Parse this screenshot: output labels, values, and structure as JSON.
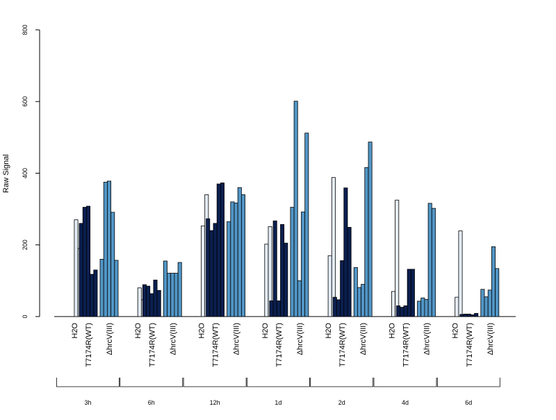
{
  "chart_data": {
    "type": "bar",
    "ylabel": "Raw Signal",
    "ylim": [
      0,
      800
    ],
    "y_ticks": [
      "0",
      "200",
      "400",
      "600",
      "800"
    ],
    "grid": false,
    "group_labels": [
      "3h",
      "6h",
      "12h",
      "1d",
      "2d",
      "4d",
      "6d"
    ],
    "condition_labels": [
      "H2O",
      "T7174R(WT)",
      "ΔhrcV(III)"
    ],
    "colors": {
      "H2O": "#e4ecf6",
      "T7174R(WT)": "#0b1f4f",
      "ΔhrcV(III)": "#5296c6"
    },
    "groups": [
      {
        "name": "3h",
        "H2O": [
          0,
          0,
          270,
          190
        ],
        "T7174R(WT)": [
          260,
          305,
          308,
          118,
          130
        ],
        "ΔhrcV(III)": [
          160,
          375,
          378,
          291,
          157
        ]
      },
      {
        "name": "6h",
        "H2O": [
          0,
          0,
          80,
          47
        ],
        "T7174R(WT)": [
          89,
          85,
          64,
          102,
          73
        ],
        "ΔhrcV(III)": [
          155,
          121,
          121,
          121,
          151
        ]
      },
      {
        "name": "12h",
        "H2O": [
          0,
          0,
          253,
          340
        ],
        "T7174R(WT)": [
          273,
          240,
          260,
          370,
          373
        ],
        "ΔhrcV(III)": [
          265,
          320,
          317,
          360,
          340
        ]
      },
      {
        "name": "1d",
        "H2O": [
          0,
          0,
          202,
          251
        ],
        "T7174R(WT)": [
          44,
          267,
          44,
          257,
          205
        ],
        "ΔhrcV(III)": [
          305,
          601,
          100,
          292,
          512
        ]
      },
      {
        "name": "2d",
        "H2O": [
          0,
          0,
          170,
          388
        ],
        "T7174R(WT)": [
          54,
          47,
          156,
          359,
          249
        ],
        "ΔhrcV(III)": [
          137,
          81,
          90,
          416,
          487
        ]
      },
      {
        "name": "4d",
        "H2O": [
          0,
          0,
          70,
          325
        ],
        "T7174R(WT)": [
          30,
          26,
          30,
          132,
          132
        ],
        "ΔhrcV(III)": [
          43,
          52,
          48,
          316,
          302
        ]
      },
      {
        "name": "6d",
        "H2O": [
          0,
          0,
          54,
          239
        ],
        "T7174R(WT)": [
          6,
          7,
          7,
          5,
          9
        ],
        "ΔhrcV(III)": [
          76,
          55,
          74,
          195,
          134
        ]
      }
    ]
  }
}
